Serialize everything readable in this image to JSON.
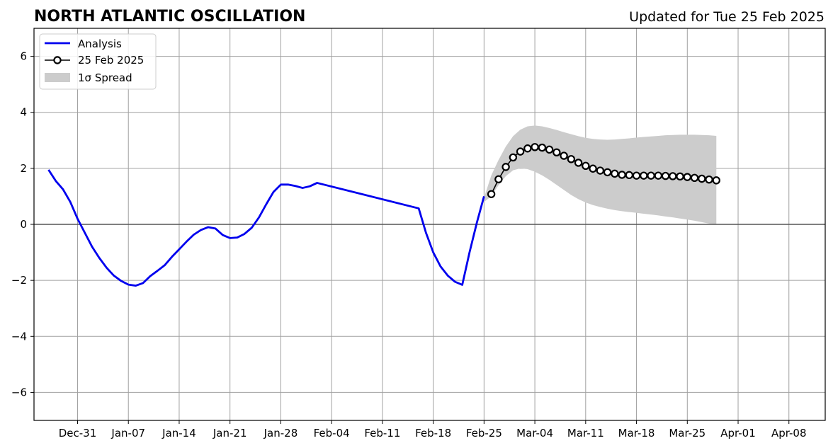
{
  "chart_data": {
    "type": "line",
    "title": "NORTH ATLANTIC OSCILLATION",
    "subtitle": "Updated for Tue 25 Feb 2025",
    "xlabel": "",
    "ylabel": "",
    "xlim": [
      "2024-12-25",
      "2025-04-13"
    ],
    "ylim": [
      -7,
      7
    ],
    "grid": true,
    "legend_position": "top-left",
    "x_tick_labels": [
      "Dec-31",
      "Jan-07",
      "Jan-14",
      "Jan-21",
      "Jan-28",
      "Feb-04",
      "Feb-11",
      "Feb-18",
      "Feb-25",
      "Mar-04",
      "Mar-11",
      "Mar-18",
      "Mar-25",
      "Apr-01",
      "Apr-08"
    ],
    "x_tick_dates": [
      "2024-12-31",
      "2025-01-07",
      "2025-01-14",
      "2025-01-21",
      "2025-01-28",
      "2025-02-04",
      "2025-02-11",
      "2025-02-18",
      "2025-02-25",
      "2025-03-04",
      "2025-03-11",
      "2025-03-18",
      "2025-03-25",
      "2025-04-01",
      "2025-04-08"
    ],
    "y_ticks": [
      -6,
      -4,
      -2,
      0,
      2,
      4,
      6
    ],
    "y_tick_labels": [
      "−6",
      "−4",
      "−2",
      "0",
      "2",
      "4",
      "6"
    ],
    "series": [
      {
        "name": "Analysis",
        "color": "#0000ee",
        "points": [
          [
            "2024-12-27",
            1.95
          ],
          [
            "2024-12-28",
            1.55
          ],
          [
            "2024-12-29",
            1.25
          ],
          [
            "2024-12-30",
            0.8
          ],
          [
            "2024-12-31",
            0.2
          ],
          [
            "2025-01-01",
            -0.3
          ],
          [
            "2025-01-02",
            -0.8
          ],
          [
            "2025-01-03",
            -1.2
          ],
          [
            "2025-01-04",
            -1.55
          ],
          [
            "2025-01-05",
            -1.83
          ],
          [
            "2025-01-06",
            -2.02
          ],
          [
            "2025-01-07",
            -2.15
          ],
          [
            "2025-01-08",
            -2.19
          ],
          [
            "2025-01-09",
            -2.1
          ],
          [
            "2025-01-10",
            -1.85
          ],
          [
            "2025-01-11",
            -1.66
          ],
          [
            "2025-01-12",
            -1.46
          ],
          [
            "2025-01-13",
            -1.16
          ],
          [
            "2025-01-14",
            -0.89
          ],
          [
            "2025-01-15",
            -0.62
          ],
          [
            "2025-01-16",
            -0.37
          ],
          [
            "2025-01-17",
            -0.2
          ],
          [
            "2025-01-18",
            -0.1
          ],
          [
            "2025-01-19",
            -0.15
          ],
          [
            "2025-01-20",
            -0.38
          ],
          [
            "2025-01-21",
            -0.49
          ],
          [
            "2025-01-22",
            -0.47
          ],
          [
            "2025-01-23",
            -0.34
          ],
          [
            "2025-01-24",
            -0.12
          ],
          [
            "2025-01-25",
            0.25
          ],
          [
            "2025-01-26",
            0.72
          ],
          [
            "2025-01-27",
            1.16
          ],
          [
            "2025-01-28",
            1.42
          ],
          [
            "2025-01-29",
            1.42
          ],
          [
            "2025-01-30",
            1.37
          ],
          [
            "2025-01-31",
            1.3
          ],
          [
            "2025-02-01",
            1.36
          ],
          [
            "2025-02-02",
            1.48
          ],
          [
            "2025-02-16",
            0.57
          ],
          [
            "2025-02-17",
            -0.3
          ],
          [
            "2025-02-18",
            -1.0
          ],
          [
            "2025-02-19",
            -1.5
          ],
          [
            "2025-02-20",
            -1.83
          ],
          [
            "2025-02-21",
            -2.05
          ],
          [
            "2025-02-22",
            -2.16
          ],
          [
            "2025-02-23",
            -1.0
          ],
          [
            "2025-02-24",
            0.05
          ],
          [
            "2025-02-25",
            1.0
          ]
        ]
      },
      {
        "name": "25 Feb 2025",
        "color": "#000000",
        "start_date": "2025-02-26",
        "values": [
          1.08,
          1.61,
          2.05,
          2.39,
          2.6,
          2.71,
          2.76,
          2.74,
          2.67,
          2.57,
          2.45,
          2.33,
          2.2,
          2.09,
          1.99,
          1.92,
          1.86,
          1.81,
          1.77,
          1.76,
          1.74,
          1.74,
          1.74,
          1.74,
          1.73,
          1.72,
          1.71,
          1.69,
          1.66,
          1.63,
          1.6,
          1.57
        ]
      }
    ],
    "spread": {
      "name": "1σ Spread",
      "color": "#cccccc",
      "start_date": "2025-02-25",
      "upper": [
        0.95,
        1.75,
        2.3,
        2.78,
        3.15,
        3.38,
        3.5,
        3.53,
        3.5,
        3.44,
        3.37,
        3.29,
        3.22,
        3.15,
        3.09,
        3.05,
        3.03,
        3.02,
        3.03,
        3.05,
        3.07,
        3.1,
        3.12,
        3.14,
        3.16,
        3.18,
        3.19,
        3.2,
        3.2,
        3.2,
        3.19,
        3.18,
        3.16
      ],
      "lower": [
        0.8,
        1.0,
        1.4,
        1.72,
        1.93,
        2.0,
        1.97,
        1.88,
        1.75,
        1.59,
        1.41,
        1.23,
        1.05,
        0.9,
        0.78,
        0.69,
        0.62,
        0.56,
        0.51,
        0.47,
        0.44,
        0.41,
        0.38,
        0.35,
        0.32,
        0.28,
        0.25,
        0.21,
        0.17,
        0.13,
        0.08,
        0.03,
        0.0
      ]
    }
  }
}
